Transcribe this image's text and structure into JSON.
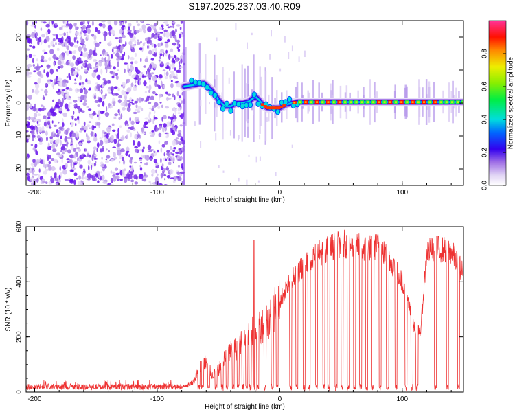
{
  "title": "S197.2025.237.03.40.R09",
  "chart_data": [
    {
      "type": "heatmap",
      "name": "spectrogram",
      "xlabel": "Height of straight line (km)",
      "ylabel": "Frequency (Hz)",
      "xlim": [
        -207,
        150
      ],
      "ylim": [
        -25,
        25
      ],
      "xticks": [
        -200,
        -100,
        0,
        100
      ],
      "xtick_labels": [
        "-200",
        "-100",
        "0",
        "100"
      ],
      "yticks": [
        -20,
        -10,
        0,
        10,
        20
      ],
      "ytick_labels": [
        "-20",
        "-10",
        "0",
        "10",
        "20"
      ],
      "noise_region": [
        -207,
        -78
      ],
      "signal_track": {
        "x": [
          -78,
          -70,
          -62,
          -56,
          -50,
          -45,
          -40,
          -35,
          -30,
          -25,
          -20,
          -17,
          -14,
          -10,
          -5,
          0,
          5,
          10,
          15,
          25,
          40,
          60,
          80,
          100,
          120,
          150
        ],
        "y": [
          5,
          5.5,
          6,
          4,
          1,
          -1,
          -1,
          0,
          0,
          0.5,
          2,
          1,
          -0.5,
          -1.5,
          -1.5,
          -1.5,
          -0.5,
          0,
          0.3,
          0.3,
          0.3,
          0.3,
          0.3,
          0.3,
          0.3,
          0.3
        ]
      },
      "colorbar": {
        "label": "Normalized spectral amplitude",
        "range": [
          0,
          1
        ],
        "ticks": [
          0.0,
          0.2,
          0.4,
          0.6,
          0.8
        ],
        "tick_labels": [
          "0.0",
          "0.2",
          "0.4",
          "0.6",
          "0.8"
        ]
      }
    },
    {
      "type": "line",
      "name": "snr",
      "xlabel": "Height of straight line (km)",
      "ylabel": "SNR (10 * v/v)",
      "xlim": [
        -207,
        150
      ],
      "ylim": [
        0,
        600
      ],
      "xticks": [
        -200,
        -100,
        0,
        100
      ],
      "xtick_labels": [
        "-200",
        "-100",
        "0",
        "100"
      ],
      "yticks": [
        0,
        200,
        400,
        600
      ],
      "ytick_labels": [
        "0",
        "200",
        "400",
        "600"
      ],
      "color": "#ee3333",
      "envelope": {
        "x": [
          -207,
          -80,
          -75,
          -70,
          -65,
          -60,
          -55,
          -50,
          -45,
          -40,
          -35,
          -30,
          -25,
          -20,
          -15,
          -10,
          -5,
          0,
          10,
          20,
          30,
          40,
          50,
          60,
          70,
          80,
          90,
          100,
          105,
          110,
          115,
          120,
          130,
          140,
          150
        ],
        "y": [
          20,
          20,
          25,
          40,
          90,
          110,
          60,
          80,
          120,
          150,
          160,
          200,
          220,
          240,
          240,
          260,
          290,
          330,
          410,
          460,
          500,
          520,
          540,
          530,
          520,
          530,
          480,
          400,
          320,
          230,
          220,
          510,
          520,
          510,
          430
        ]
      },
      "dropouts": [
        -66,
        -63,
        -58,
        -52,
        -47,
        -43,
        -38,
        -34,
        -30,
        -27,
        -24,
        -21,
        -18,
        -12,
        -6,
        -2,
        9,
        14,
        20,
        24,
        30,
        36,
        40,
        46,
        51,
        56,
        61,
        66,
        71,
        76,
        82,
        88,
        95,
        103,
        108,
        112,
        127,
        137,
        146
      ]
    }
  ]
}
